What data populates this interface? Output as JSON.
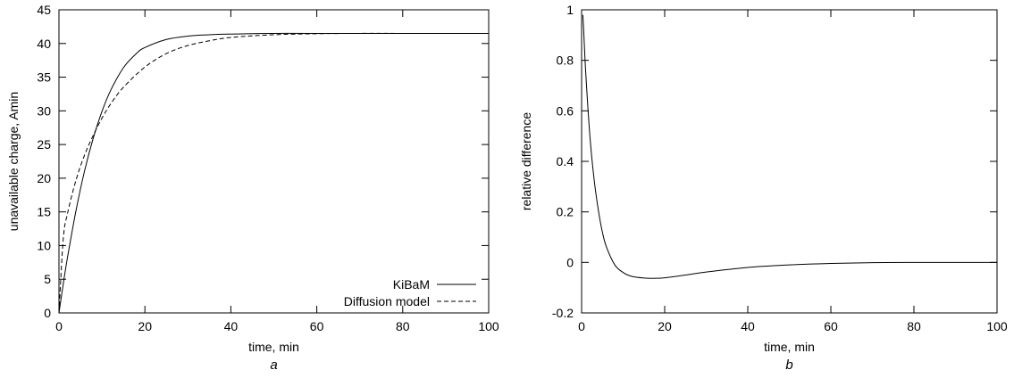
{
  "chart_data": [
    {
      "type": "line",
      "panel_label": "a",
      "xlabel": "time, min",
      "ylabel": "unavailable charge, Amin",
      "xlim": [
        0,
        100
      ],
      "ylim": [
        0,
        45
      ],
      "xticks": [
        0,
        20,
        40,
        60,
        80,
        100
      ],
      "yticks": [
        0,
        5,
        10,
        15,
        20,
        25,
        30,
        35,
        40,
        45
      ],
      "grid": false,
      "legend_position": "bottom-right",
      "series": [
        {
          "name": "KiBaM",
          "style": "solid",
          "x": [
            0,
            1,
            2,
            4,
            6,
            8,
            10,
            12,
            15,
            18,
            20,
            25,
            30,
            35,
            40,
            50,
            60,
            80,
            100
          ],
          "y": [
            0,
            4.3,
            8.3,
            15.3,
            21.2,
            26.0,
            29.9,
            33.0,
            36.4,
            38.5,
            39.4,
            40.6,
            41.1,
            41.3,
            41.4,
            41.5,
            41.5,
            41.5,
            41.5
          ]
        },
        {
          "name": "Diffusion model",
          "style": "dashed",
          "x": [
            0,
            1,
            2,
            4,
            6,
            8,
            10,
            12,
            15,
            20,
            25,
            30,
            35,
            40,
            50,
            60,
            70,
            80,
            100
          ],
          "y": [
            0,
            11.0,
            14.8,
            19.8,
            23.5,
            26.4,
            28.9,
            31.0,
            33.5,
            36.5,
            38.5,
            39.7,
            40.4,
            40.9,
            41.3,
            41.45,
            41.5,
            41.5,
            41.5
          ]
        }
      ]
    },
    {
      "type": "line",
      "panel_label": "b",
      "xlabel": "time, min",
      "ylabel": "relative difference",
      "xlim": [
        0,
        100
      ],
      "ylim": [
        -0.2,
        1
      ],
      "xticks": [
        0,
        20,
        40,
        60,
        80,
        100
      ],
      "yticks": [
        -0.2,
        0,
        0.2,
        0.4,
        0.6,
        0.8,
        1
      ],
      "grid": false,
      "series": [
        {
          "style": "solid",
          "x": [
            0.3,
            0.5,
            1,
            2,
            3,
            4,
            5,
            6,
            8,
            10,
            12,
            15,
            18,
            20,
            25,
            30,
            40,
            50,
            60,
            70,
            80,
            100
          ],
          "y": [
            0.98,
            0.92,
            0.75,
            0.5,
            0.33,
            0.21,
            0.12,
            0.06,
            -0.01,
            -0.04,
            -0.055,
            -0.062,
            -0.063,
            -0.061,
            -0.05,
            -0.038,
            -0.02,
            -0.01,
            -0.004,
            -0.001,
            0,
            0
          ]
        }
      ]
    }
  ]
}
